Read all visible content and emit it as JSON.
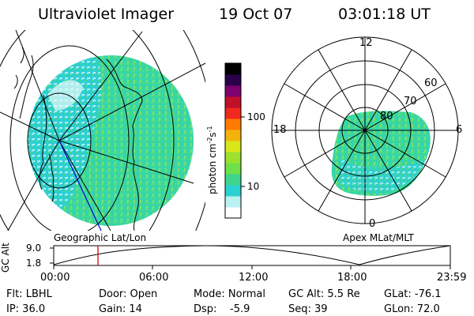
{
  "header": {
    "title": "Ultraviolet Imager",
    "date": "19 Oct 07",
    "time": "03:01:18 UT"
  },
  "left_panel": {
    "caption": "Geographic Lat/Lon"
  },
  "right_panel": {
    "caption": "Apex MLat/MLT",
    "mlt_labels": [
      "12",
      "6",
      "0",
      "18"
    ],
    "lat_labels": [
      "60",
      "70",
      "80"
    ]
  },
  "colorbar": {
    "label": "photon cm",
    "label_sup1": "-2",
    "label_mid": "s",
    "label_sup2": "-1",
    "ticks": [
      "100",
      "10"
    ],
    "scale": "log",
    "colors": [
      "#ffffff",
      "#b9f0f0",
      "#29d1d1",
      "#3fd48c",
      "#6fe04a",
      "#9be12e",
      "#d8e61a",
      "#f2b20b",
      "#ff7a00",
      "#f0281e",
      "#c0102a",
      "#800070",
      "#2a004a",
      "#000000"
    ]
  },
  "timeline": {
    "y_label": "GC Alt",
    "y_ticks": [
      "9.0",
      "1.8"
    ],
    "x_ticks": [
      "00:00",
      "06:00",
      "12:00",
      "18:00",
      "23:59"
    ],
    "marker_time": "03:01"
  },
  "info": {
    "row1": {
      "flt": "Flt: LBHL",
      "door": "Door: Open",
      "mode": "Mode: Normal",
      "gcalt": "GC Alt: 5.5 Re",
      "glat": "GLat: -76.1"
    },
    "row2": {
      "ip": "IP: 36.0",
      "gain": "Gain: 14",
      "dsp_label": "Dsp:",
      "dsp_value": "-5.9",
      "seq": "Seq: 39",
      "glon": "GLon: 72.0"
    }
  }
}
